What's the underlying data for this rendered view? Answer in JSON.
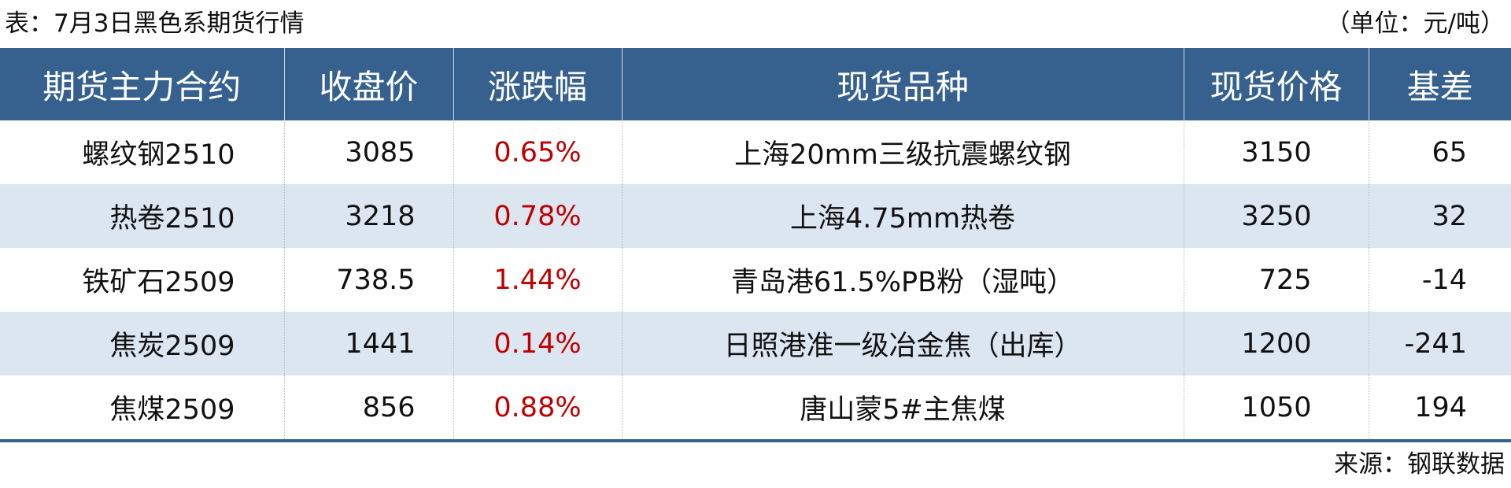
{
  "title": "表：7月3日黑色系期货行情",
  "unit": "（单位：元/吨）",
  "colors": {
    "header_bg": "#36618f",
    "alt_row_bg": "#dce6f1",
    "change_text": "#c00000"
  },
  "table": {
    "headers": [
      "期货主力合约",
      "收盘价",
      "涨跌幅",
      "现货品种",
      "现货价格",
      "基差"
    ],
    "rows": [
      {
        "contract": "螺纹钢2510",
        "close": "3085",
        "change": "0.65%",
        "spot": "上海20mm三级抗震螺纹钢",
        "spot_price": "3150",
        "basis": "65"
      },
      {
        "contract": "热卷2510",
        "close": "3218",
        "change": "0.78%",
        "spot": "上海4.75mm热卷",
        "spot_price": "3250",
        "basis": "32"
      },
      {
        "contract": "铁矿石2509",
        "close": "738.5",
        "change": "1.44%",
        "spot": "青岛港61.5%PB粉（湿吨）",
        "spot_price": "725",
        "basis": "-14"
      },
      {
        "contract": "焦炭2509",
        "close": "1441",
        "change": "0.14%",
        "spot": "日照港准一级冶金焦（出库）",
        "spot_price": "1200",
        "basis": "-241"
      },
      {
        "contract": "焦煤2509",
        "close": "856",
        "change": "0.88%",
        "spot": "唐山蒙5#主焦煤",
        "spot_price": "1050",
        "basis": "194"
      }
    ]
  },
  "source": "来源：钢联数据"
}
